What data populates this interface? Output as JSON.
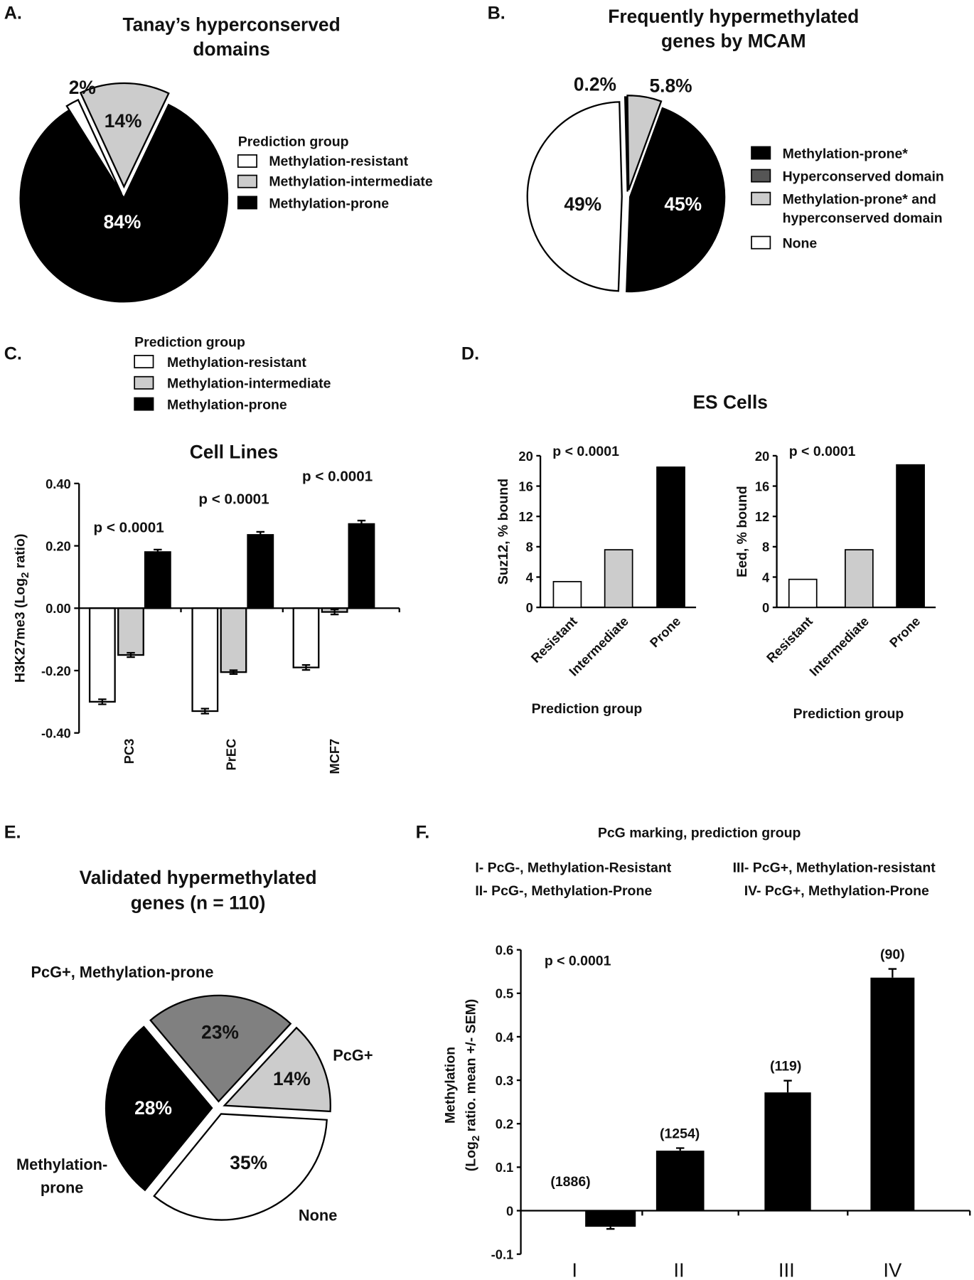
{
  "panel_a": {
    "letter": "A.",
    "title_lines": [
      "Tanay’s hyperconserved",
      "domains"
    ],
    "legend_title": "Prediction group",
    "chart_data": {
      "type": "pie",
      "slices": [
        {
          "label": "Methylation-resistant",
          "value": 2,
          "pct_label": "2%",
          "color": "#ffffff"
        },
        {
          "label": "Methylation-intermediate",
          "value": 14,
          "pct_label": "14%",
          "color": "#cccccc"
        },
        {
          "label": "Methylation-prone",
          "value": 84,
          "pct_label": "84%",
          "color": "#000000"
        }
      ]
    }
  },
  "panel_b": {
    "letter": "B.",
    "title_lines": [
      "Frequently hypermethylated",
      "genes by MCAM"
    ],
    "legend": [
      "Methylation-prone*",
      "Hyperconserved domain",
      "Methylation-prone* and",
      "hyperconserved domain",
      "None"
    ],
    "chart_data": {
      "type": "pie",
      "slices": [
        {
          "label": "Hyperconserved domain",
          "value": 0.2,
          "pct_label": "0.2%",
          "color": "#555555"
        },
        {
          "label": "Methylation-prone* and hyperconserved domain",
          "value": 5.8,
          "pct_label": "5.8%",
          "color": "#cccccc"
        },
        {
          "label": "Methylation-prone*",
          "value": 45,
          "pct_label": "45%",
          "color": "#000000"
        },
        {
          "label": "None",
          "value": 49,
          "pct_label": "49%",
          "color": "#ffffff"
        }
      ]
    }
  },
  "panel_c": {
    "letter": "C.",
    "legend_title": "Prediction group",
    "chart_data": {
      "type": "bar",
      "title": "Cell Lines",
      "ylabel_parts": [
        "H3K27me3 (Log",
        "2",
        " ratio)"
      ],
      "categories": [
        "PC3",
        "PrEC",
        "MCF7"
      ],
      "ylim": [
        -0.4,
        0.4
      ],
      "yticks": [
        0.4,
        0.2,
        0,
        -0.2,
        -0.4
      ],
      "ytick_labels": [
        "0.40",
        "0.20",
        "0.00",
        "-0.20",
        "-0.40"
      ],
      "series": [
        {
          "name": "Methylation-resistant",
          "color": "#ffffff",
          "values": [
            -0.3,
            -0.33,
            -0.19
          ],
          "errors": [
            0.008,
            0.008,
            0.008
          ]
        },
        {
          "name": "Methylation-intermediate",
          "color": "#cccccc",
          "values": [
            -0.15,
            -0.205,
            -0.012
          ],
          "errors": [
            0.007,
            0.006,
            0.008
          ]
        },
        {
          "name": "Methylation-prone",
          "color": "#000000",
          "values": [
            0.18,
            0.235,
            0.27
          ],
          "errors": [
            0.008,
            0.01,
            0.011
          ]
        }
      ],
      "annotations": [
        "p < 0.0001",
        "p < 0.0001",
        "p < 0.0001"
      ]
    }
  },
  "panel_d": {
    "letter": "D.",
    "title": "ES Cells",
    "chart_data": [
      {
        "type": "bar",
        "ylabel": "Suz12, % bound",
        "xlabel": "Prediction group",
        "categories": [
          "Resistant",
          "Intermediate",
          "Prone"
        ],
        "values": [
          3.4,
          7.6,
          18.5
        ],
        "colors": [
          "#ffffff",
          "#cccccc",
          "#000000"
        ],
        "ylim": [
          0,
          20
        ],
        "yticks": [
          0,
          4,
          8,
          12,
          16,
          20
        ],
        "annotation": "p < 0.0001"
      },
      {
        "type": "bar",
        "ylabel": "Eed, % bound",
        "xlabel": "Prediction group",
        "categories": [
          "Resistant",
          "Intermediate",
          "Prone"
        ],
        "values": [
          3.7,
          7.6,
          18.8
        ],
        "colors": [
          "#ffffff",
          "#cccccc",
          "#000000"
        ],
        "ylim": [
          0,
          20
        ],
        "yticks": [
          0,
          4,
          8,
          12,
          16,
          20
        ],
        "annotation": "p < 0.0001"
      }
    ]
  },
  "panel_e": {
    "letter": "E.",
    "title_lines": [
      "Validated hypermethylated",
      "genes (n = 110)"
    ],
    "outer_labels": [
      "PcG+, Methylation-prone",
      "PcG+",
      "None",
      "Methylation-",
      "prone"
    ],
    "chart_data": {
      "type": "pie",
      "slices": [
        {
          "label": "PcG+, Methylation-prone",
          "value": 23,
          "pct_label": "23%",
          "color": "#808080"
        },
        {
          "label": "PcG+",
          "value": 14,
          "pct_label": "14%",
          "color": "#cccccc"
        },
        {
          "label": "None",
          "value": 35,
          "pct_label": "35%",
          "color": "#ffffff"
        },
        {
          "label": "Methylation-prone",
          "value": 28,
          "pct_label": "28%",
          "color": "#000000"
        }
      ]
    }
  },
  "panel_f": {
    "letter": "F.",
    "header": "PcG marking, prediction group",
    "legend": [
      "I- PcG-, Methylation-Resistant",
      "II- PcG-, Methylation-Prone",
      "III- PcG+, Methylation-resistant",
      "IV- PcG+, Methylation-Prone"
    ],
    "chart_data": {
      "type": "bar",
      "ylabel_line1": "Methylation",
      "ylabel_parts": [
        "(Log",
        "2",
        " ratio. mean +/- SEM)"
      ],
      "categories": [
        "I",
        "II",
        "III",
        "IV"
      ],
      "values": [
        -0.037,
        0.138,
        0.272,
        0.536
      ],
      "errors": [
        0.005,
        0.006,
        0.027,
        0.02
      ],
      "counts": [
        "(1886)",
        "(1254)",
        "(119)",
        "(90)"
      ],
      "ylim": [
        -0.1,
        0.6
      ],
      "yticks": [
        0.6,
        0.5,
        0.4,
        0.3,
        0.2,
        0.1,
        0,
        -0.1
      ],
      "annotation": "p < 0.0001",
      "color": "#000000"
    }
  }
}
